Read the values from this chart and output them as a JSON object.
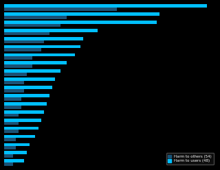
{
  "background_color": "#000000",
  "bar_color_others": "#1a5276",
  "bar_color_users": "#00bfff",
  "legend_label_others": "Harm to others (54)",
  "legend_label_users": "Harm to users (48)",
  "harm_others": [
    40,
    22,
    20,
    16,
    14,
    13,
    10,
    10,
    8,
    7,
    7,
    6,
    6,
    5,
    5,
    5,
    4,
    4,
    3,
    3
  ],
  "harm_users": [
    72,
    55,
    54,
    33,
    28,
    27,
    25,
    22,
    20,
    18,
    17,
    16,
    15,
    14,
    13,
    12,
    11,
    9,
    8,
    7
  ]
}
